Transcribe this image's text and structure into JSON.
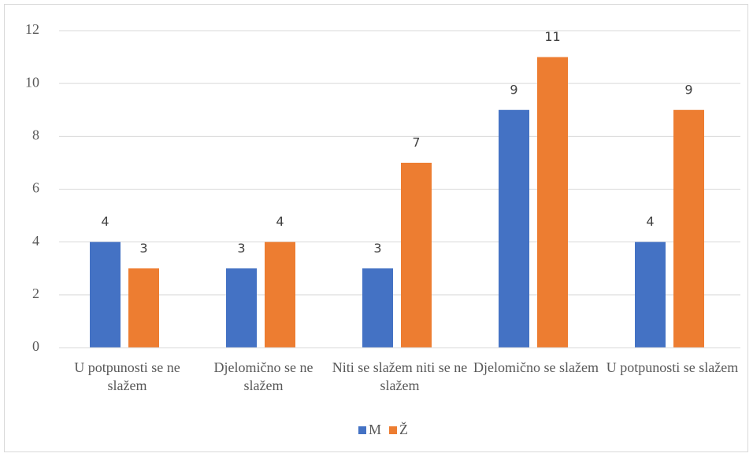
{
  "chart_data": {
    "type": "bar",
    "categories": [
      "U potpunosti se ne slažem",
      "Djelomično se ne slažem",
      "Niti se slažem niti se ne slažem",
      "Djelomično se slažem",
      "U potpunosti se slažem"
    ],
    "series": [
      {
        "name": "M",
        "color": "#4472c4",
        "values": [
          4,
          3,
          3,
          9,
          4
        ]
      },
      {
        "name": "Ž",
        "color": "#ed7d31",
        "values": [
          3,
          4,
          7,
          11,
          9
        ]
      }
    ],
    "ylim": [
      0,
      12
    ],
    "yticks": [
      0,
      2,
      4,
      6,
      8,
      10,
      12
    ],
    "grid": true,
    "legend": "bottom"
  }
}
